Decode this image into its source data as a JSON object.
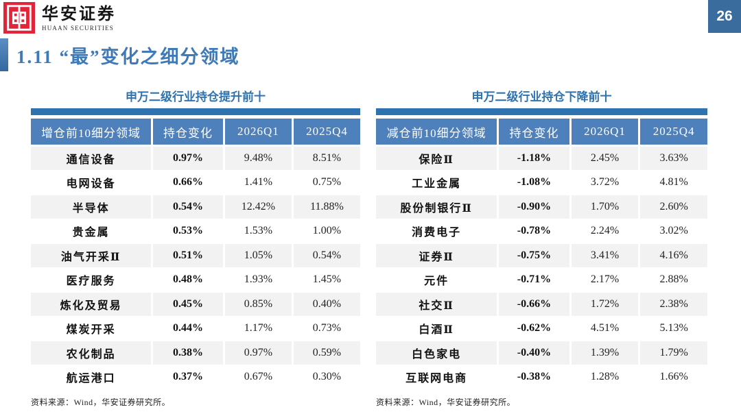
{
  "page": {
    "number": "26",
    "title": "1.11 “最”变化之细分领域"
  },
  "logo": {
    "name_cn": "华安证券",
    "name_en": "HUAAN SECURITIES"
  },
  "colors": {
    "logo_red": "#E2243A",
    "badge_blue": "#3A6D9E",
    "title_blue": "#3E79B8",
    "bar_blue": "#2E73B0",
    "header_blue": "#4E80BB",
    "row_stripe_gray": "#F2F2F2"
  },
  "tables": [
    {
      "title": "申万二级行业持仓提升前十",
      "headers": [
        "增仓前10细分领域",
        "持仓变化",
        "2026Q1",
        "2025Q4"
      ],
      "rows": [
        [
          "通信设备",
          "0.97%",
          "9.48%",
          "8.51%"
        ],
        [
          "电网设备",
          "0.66%",
          "1.41%",
          "0.75%"
        ],
        [
          "半导体",
          "0.54%",
          "12.42%",
          "11.88%"
        ],
        [
          "贵金属",
          "0.53%",
          "1.53%",
          "1.00%"
        ],
        [
          "油气开采Ⅱ",
          "0.51%",
          "1.05%",
          "0.54%"
        ],
        [
          "医疗服务",
          "0.48%",
          "1.93%",
          "1.45%"
        ],
        [
          "炼化及贸易",
          "0.45%",
          "0.85%",
          "0.40%"
        ],
        [
          "煤炭开采",
          "0.44%",
          "1.17%",
          "0.73%"
        ],
        [
          "农化制品",
          "0.38%",
          "0.97%",
          "0.59%"
        ],
        [
          "航运港口",
          "0.37%",
          "0.67%",
          "0.30%"
        ]
      ],
      "source": "资料来源：Wind，华安证券研究所。"
    },
    {
      "title": "申万二级行业持仓下降前十",
      "headers": [
        "减仓前10细分领域",
        "持仓变化",
        "2026Q1",
        "2025Q4"
      ],
      "rows": [
        [
          "保险Ⅱ",
          "-1.18%",
          "2.45%",
          "3.63%"
        ],
        [
          "工业金属",
          "-1.08%",
          "3.72%",
          "4.81%"
        ],
        [
          "股份制银行Ⅱ",
          "-0.90%",
          "1.70%",
          "2.60%"
        ],
        [
          "消费电子",
          "-0.78%",
          "2.24%",
          "3.02%"
        ],
        [
          "证券Ⅱ",
          "-0.75%",
          "3.41%",
          "4.16%"
        ],
        [
          "元件",
          "-0.71%",
          "2.17%",
          "2.88%"
        ],
        [
          "社交Ⅱ",
          "-0.66%",
          "1.72%",
          "2.38%"
        ],
        [
          "白酒Ⅱ",
          "-0.62%",
          "4.51%",
          "5.13%"
        ],
        [
          "白色家电",
          "-0.40%",
          "1.39%",
          "1.79%"
        ],
        [
          "互联网电商",
          "-0.38%",
          "1.28%",
          "1.66%"
        ]
      ],
      "source": "资料来源：Wind，华安证券研究所。"
    }
  ]
}
